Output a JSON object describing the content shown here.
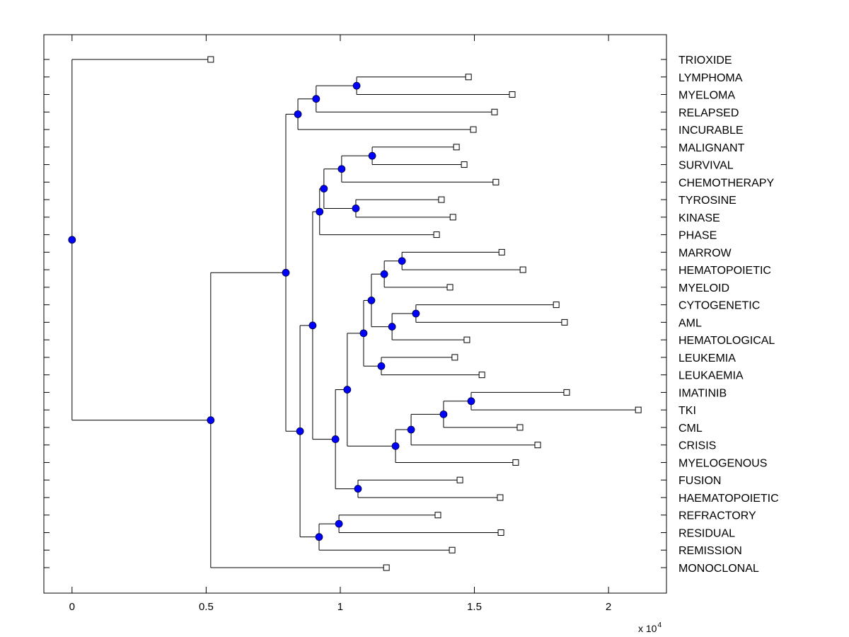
{
  "chart_data": {
    "type": "dendrogram",
    "title": "",
    "xlabel": "",
    "ylabel": "",
    "x_exponent_label": "x 10",
    "x_exponent": "4",
    "xlim": [
      -0.105,
      2.216
    ],
    "xticks": [
      0,
      0.5,
      1,
      1.5,
      2
    ],
    "xtick_labels": [
      "0",
      "0.5",
      "1",
      "1.5",
      "2"
    ],
    "grid": false,
    "colors": {
      "node_fill": "#0000ff",
      "leaf_fill": "#ffffff",
      "line": "#000000"
    },
    "leaves": [
      {
        "label": "TRIOXIDE",
        "x": 0.517
      },
      {
        "label": "LYMPHOMA",
        "x": 1.478
      },
      {
        "label": "MYELOMA",
        "x": 1.641
      },
      {
        "label": "RELAPSED",
        "x": 1.575
      },
      {
        "label": "INCURABLE",
        "x": 1.496
      },
      {
        "label": "MALIGNANT",
        "x": 1.433
      },
      {
        "label": "SURVIVAL",
        "x": 1.462
      },
      {
        "label": "CHEMOTHERAPY",
        "x": 1.58
      },
      {
        "label": "TYROSINE",
        "x": 1.377
      },
      {
        "label": "KINASE",
        "x": 1.42
      },
      {
        "label": "PHASE",
        "x": 1.359
      },
      {
        "label": "MARROW",
        "x": 1.602
      },
      {
        "label": "HEMATOPOIETIC",
        "x": 1.681
      },
      {
        "label": "MYELOID",
        "x": 1.409
      },
      {
        "label": "CYTOGENETIC",
        "x": 1.805
      },
      {
        "label": "AML",
        "x": 1.836
      },
      {
        "label": "HEMATOLOGICAL",
        "x": 1.472
      },
      {
        "label": "LEUKEMIA",
        "x": 1.427
      },
      {
        "label": "LEUKAEMIA",
        "x": 1.528
      },
      {
        "label": "IMATINIB",
        "x": 1.844
      },
      {
        "label": "TKI",
        "x": 2.111
      },
      {
        "label": "CML",
        "x": 1.67
      },
      {
        "label": "CRISIS",
        "x": 1.736
      },
      {
        "label": "MYELOGENOUS",
        "x": 1.654
      },
      {
        "label": "FUSION",
        "x": 1.446
      },
      {
        "label": "HAEMATOPOIETIC",
        "x": 1.596
      },
      {
        "label": "REFRACTORY",
        "x": 1.364
      },
      {
        "label": "RESIDUAL",
        "x": 1.599
      },
      {
        "label": "REMISSION",
        "x": 1.417
      },
      {
        "label": "MONOCLONAL",
        "x": 1.172
      }
    ],
    "nodes": [
      {
        "id": "n_root",
        "x": 0.0,
        "children": [
          "L0",
          "n1"
        ]
      },
      {
        "id": "n1",
        "x": 0.517,
        "children": [
          "n2",
          "L29"
        ]
      },
      {
        "id": "n2",
        "x": 0.797,
        "children": [
          "n3",
          "n10"
        ]
      },
      {
        "id": "n3",
        "x": 0.842,
        "children": [
          "n4",
          "L4"
        ]
      },
      {
        "id": "n4",
        "x": 0.91,
        "children": [
          "n5",
          "L3"
        ]
      },
      {
        "id": "n5",
        "x": 1.061,
        "children": [
          "L1",
          "L2"
        ]
      },
      {
        "id": "n10",
        "x": 0.85,
        "children": [
          "n11",
          "n40"
        ]
      },
      {
        "id": "n11",
        "x": 0.897,
        "children": [
          "n12",
          "n20"
        ]
      },
      {
        "id": "n12",
        "x": 0.923,
        "children": [
          "n13",
          "L10"
        ]
      },
      {
        "id": "n13",
        "x": 0.939,
        "children": [
          "n14",
          "n16"
        ]
      },
      {
        "id": "n14",
        "x": 1.005,
        "children": [
          "n15",
          "L7"
        ]
      },
      {
        "id": "n15",
        "x": 1.119,
        "children": [
          "L5",
          "L6"
        ]
      },
      {
        "id": "n16",
        "x": 1.058,
        "children": [
          "L8",
          "L9"
        ]
      },
      {
        "id": "n20",
        "x": 0.982,
        "children": [
          "n21",
          "n35"
        ]
      },
      {
        "id": "n21",
        "x": 1.026,
        "children": [
          "n22",
          "n30"
        ]
      },
      {
        "id": "n22",
        "x": 1.087,
        "children": [
          "n23",
          "n28"
        ]
      },
      {
        "id": "n23",
        "x": 1.116,
        "children": [
          "n24",
          "n26"
        ]
      },
      {
        "id": "n24",
        "x": 1.164,
        "children": [
          "n25",
          "L13"
        ]
      },
      {
        "id": "n25",
        "x": 1.23,
        "children": [
          "L11",
          "L12"
        ]
      },
      {
        "id": "n26",
        "x": 1.193,
        "children": [
          "n27",
          "L16"
        ]
      },
      {
        "id": "n27",
        "x": 1.282,
        "children": [
          "L14",
          "L15"
        ]
      },
      {
        "id": "n28",
        "x": 1.153,
        "children": [
          "L17",
          "L18"
        ]
      },
      {
        "id": "n30",
        "x": 1.206,
        "children": [
          "n31",
          "L23"
        ]
      },
      {
        "id": "n31",
        "x": 1.264,
        "children": [
          "n32",
          "L22"
        ]
      },
      {
        "id": "n32",
        "x": 1.385,
        "children": [
          "n33",
          "L21"
        ]
      },
      {
        "id": "n33",
        "x": 1.488,
        "children": [
          "L19",
          "L20"
        ]
      },
      {
        "id": "n35",
        "x": 1.066,
        "children": [
          "L24",
          "L25"
        ]
      },
      {
        "id": "n40",
        "x": 0.921,
        "children": [
          "n41",
          "L28"
        ]
      },
      {
        "id": "n41",
        "x": 0.995,
        "children": [
          "L26",
          "L27"
        ]
      }
    ]
  }
}
